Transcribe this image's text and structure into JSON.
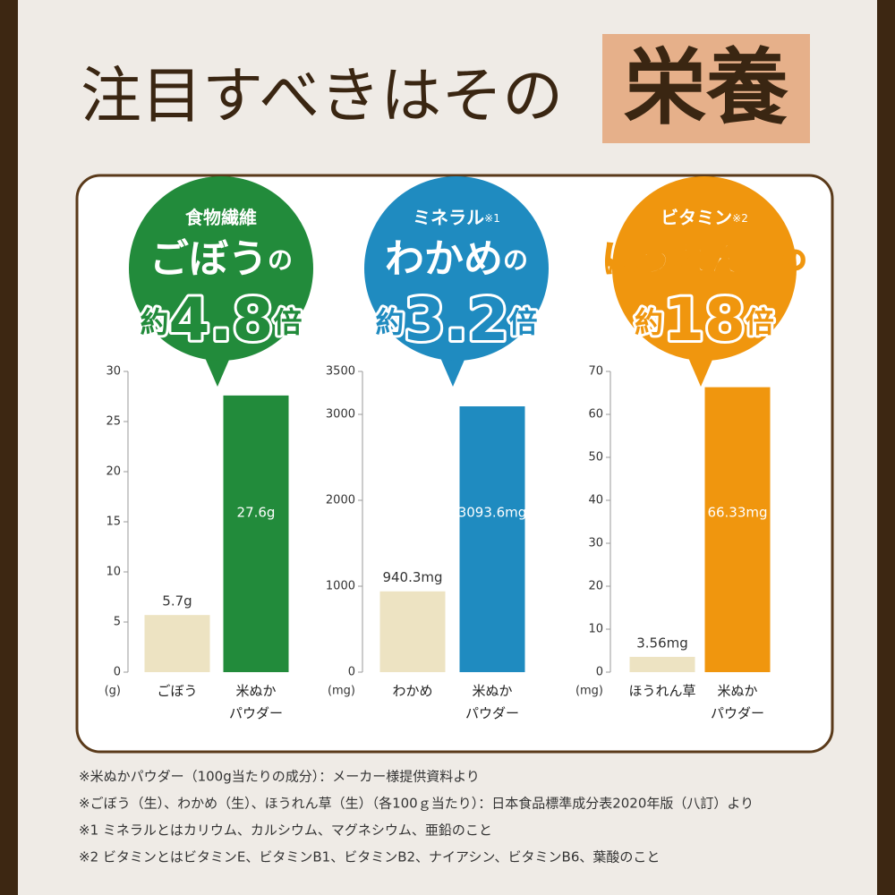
{
  "title": {
    "text": "注目すべきはその",
    "highlight": "栄養"
  },
  "chart_data": [
    {
      "type": "bar",
      "badge": {
        "label": "食物繊維",
        "note": null,
        "subject": "ごぼう",
        "particle": "の",
        "prefix": "約",
        "ratio": "4.8",
        "suffix": "倍"
      },
      "unit": "(g)",
      "categories": [
        "ごぼう",
        "米ぬか\nパウダー"
      ],
      "values": [
        5.7,
        27.6
      ],
      "value_labels": [
        "5.7g",
        "27.6g"
      ],
      "colors": [
        "#ede3c2",
        "#228b3b"
      ],
      "ylim": [
        0,
        30
      ],
      "yticks": [
        0,
        5,
        10,
        15,
        20,
        25,
        30
      ]
    },
    {
      "type": "bar",
      "badge": {
        "label": "ミネラル",
        "note": "※1",
        "subject": "わかめ",
        "particle": "の",
        "prefix": "約",
        "ratio": "3.2",
        "suffix": "倍"
      },
      "unit": "(mg)",
      "categories": [
        "わかめ",
        "米ぬか\nパウダー"
      ],
      "values": [
        940.3,
        3093.6
      ],
      "value_labels": [
        "940.3mg",
        "3093.6mg"
      ],
      "colors": [
        "#ede3c2",
        "#1f8bc0"
      ],
      "ylim": [
        0,
        3500
      ],
      "yticks": [
        0,
        1000,
        2000,
        3000,
        3500
      ]
    },
    {
      "type": "bar",
      "badge": {
        "label": "ビタミン",
        "note": "※2",
        "subject": "ほうれん草",
        "particle": "の",
        "prefix": "約",
        "ratio": "18",
        "suffix": "倍"
      },
      "unit": "(mg)",
      "categories": [
        "ほうれん草",
        "米ぬか\nパウダー"
      ],
      "values": [
        3.56,
        66.33
      ],
      "value_labels": [
        "3.56mg",
        "66.33mg"
      ],
      "colors": [
        "#ede3c2",
        "#f0960e"
      ],
      "ylim": [
        0,
        70
      ],
      "yticks": [
        0,
        10,
        20,
        30,
        40,
        50,
        60,
        70
      ]
    }
  ],
  "notes": [
    "※米ぬかパウダー（100g当たりの成分）：メーカー様提供資料より",
    "※ごぼう（生）、わかめ（生）、ほうれん草（生）（各100ｇ当たり）：日本食品標準成分表2020年版（八訂）より",
    "※1 ミネラルとはカリウム、カルシウム、マグネシウム、亜鉛のこと",
    "※2 ビタミンとはビタミンE、ビタミンB1、ビタミンB2、ナイアシン、ビタミンB6、葉酸のこと"
  ]
}
